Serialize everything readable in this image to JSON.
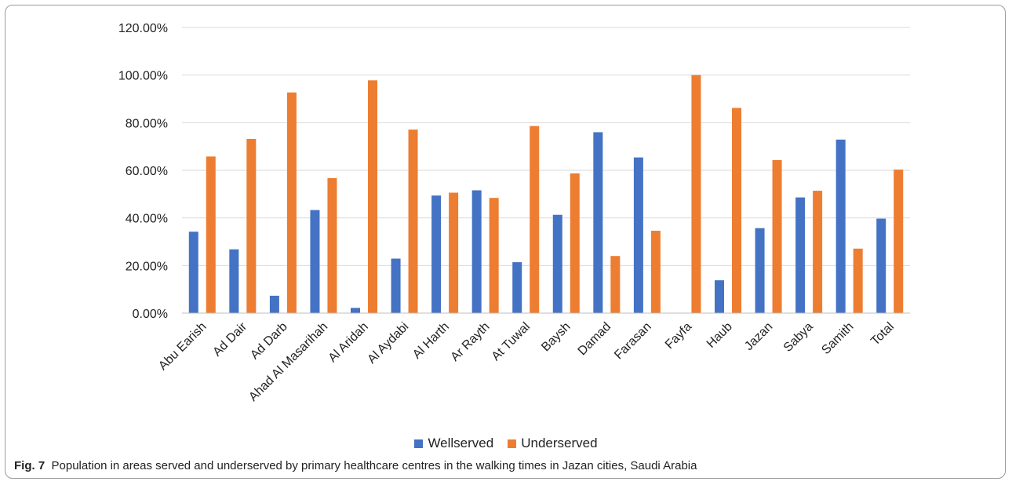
{
  "chart_data": {
    "type": "bar",
    "categories": [
      "Abu Earish",
      "Ad Dair",
      "Ad Darb",
      "Ahad Al Masarihah",
      "Al Aridah",
      "Al Aydabi",
      "Al Harth",
      "Ar Rayth",
      "At Tuwal",
      "Baysh",
      "Damad",
      "Farasan",
      "Fayfa",
      "Haub",
      "Jazan",
      "Sabya",
      "Samith",
      "Total"
    ],
    "series": [
      {
        "name": "Wellserved",
        "color": "#4472C4",
        "values": [
          34.2,
          26.8,
          7.3,
          43.3,
          2.2,
          22.9,
          49.4,
          51.6,
          21.4,
          41.3,
          76.0,
          65.4,
          0.0,
          13.8,
          35.7,
          48.6,
          72.9,
          39.7
        ]
      },
      {
        "name": "Underserved",
        "color": "#ED7D31",
        "values": [
          65.8,
          73.2,
          92.7,
          56.7,
          97.8,
          77.1,
          50.6,
          48.4,
          78.6,
          58.7,
          24.0,
          34.6,
          100.0,
          86.2,
          64.3,
          51.4,
          27.1,
          60.3
        ]
      }
    ],
    "ylim": [
      0,
      120
    ],
    "yticks": [
      "0.00%",
      "20.00%",
      "40.00%",
      "60.00%",
      "80.00%",
      "100.00%",
      "120.00%"
    ],
    "grid": true,
    "legend_position": "bottom"
  },
  "caption": {
    "label": "Fig. 7",
    "text": "Population in areas served and underserved by primary healthcare centres in the walking times in Jazan cities, Saudi Arabia"
  }
}
